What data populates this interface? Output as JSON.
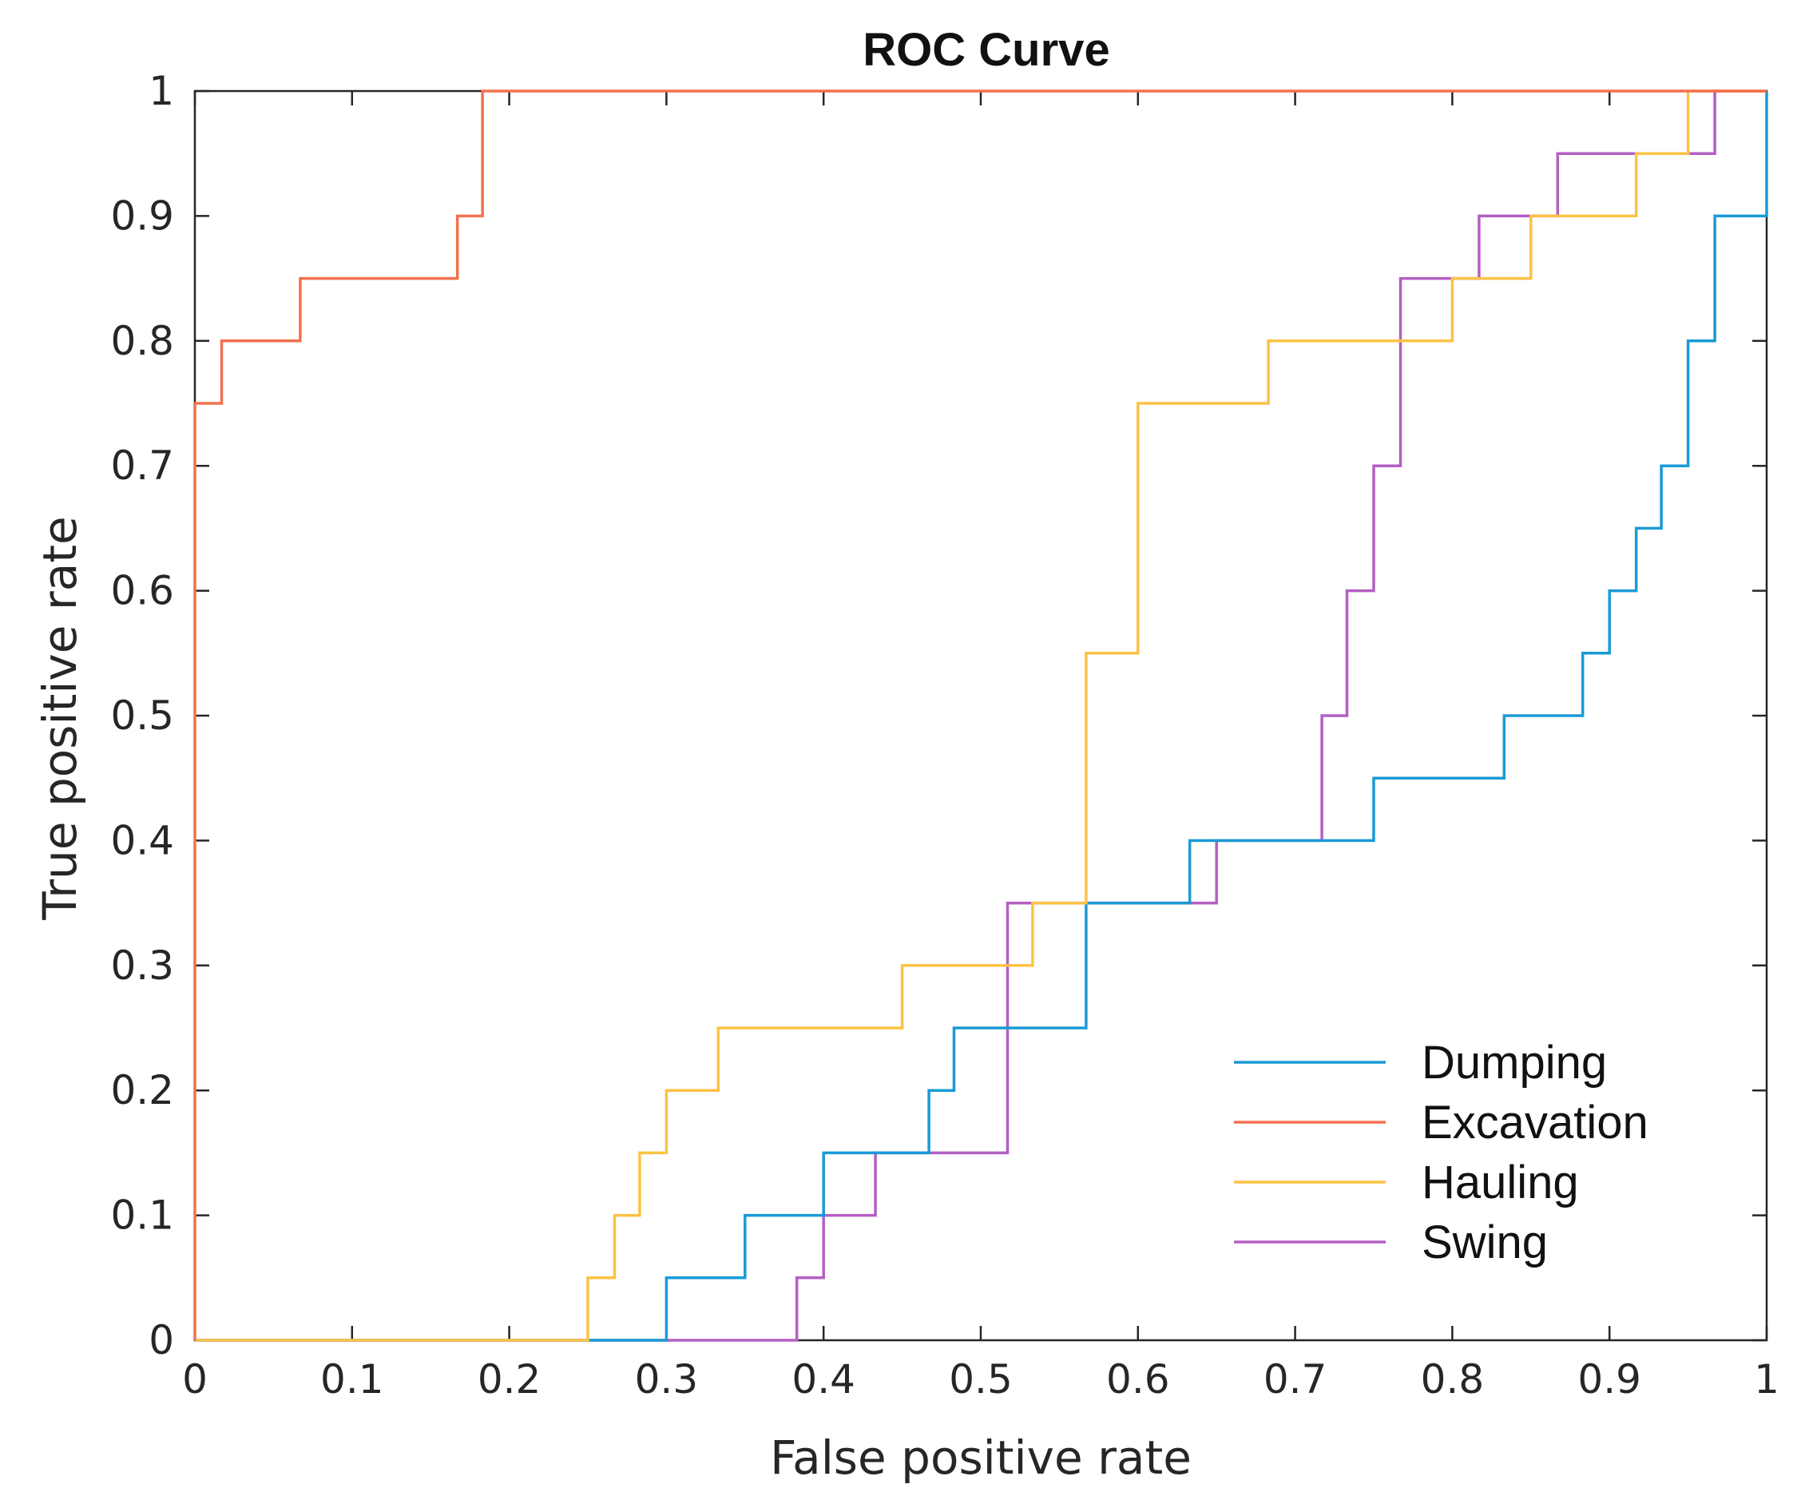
{
  "chart_data": {
    "type": "line",
    "title": "ROC Curve",
    "xlabel": "False positive rate",
    "ylabel": "True positive rate",
    "xlim": [
      0,
      1
    ],
    "ylim": [
      0,
      1
    ],
    "xticks": [
      "0",
      "0.1",
      "0.2",
      "0.3",
      "0.4",
      "0.5",
      "0.6",
      "0.7",
      "0.8",
      "0.9",
      "1"
    ],
    "yticks": [
      "0",
      "0.1",
      "0.2",
      "0.3",
      "0.4",
      "0.5",
      "0.6",
      "0.7",
      "0.8",
      "0.9",
      "1"
    ],
    "grid": false,
    "legend_position": "bottom-right",
    "series": [
      {
        "name": "Dumping",
        "color": "#1a9ad6",
        "points": [
          [
            0,
            0
          ],
          [
            0.3,
            0
          ],
          [
            0.3,
            0.05
          ],
          [
            0.35,
            0.05
          ],
          [
            0.35,
            0.1
          ],
          [
            0.4,
            0.1
          ],
          [
            0.4,
            0.15
          ],
          [
            0.467,
            0.15
          ],
          [
            0.467,
            0.2
          ],
          [
            0.483,
            0.2
          ],
          [
            0.483,
            0.25
          ],
          [
            0.567,
            0.25
          ],
          [
            0.567,
            0.35
          ],
          [
            0.633,
            0.35
          ],
          [
            0.633,
            0.4
          ],
          [
            0.75,
            0.4
          ],
          [
            0.75,
            0.45
          ],
          [
            0.833,
            0.45
          ],
          [
            0.833,
            0.5
          ],
          [
            0.883,
            0.5
          ],
          [
            0.883,
            0.55
          ],
          [
            0.9,
            0.55
          ],
          [
            0.9,
            0.6
          ],
          [
            0.917,
            0.6
          ],
          [
            0.917,
            0.65
          ],
          [
            0.933,
            0.65
          ],
          [
            0.933,
            0.7
          ],
          [
            0.95,
            0.7
          ],
          [
            0.95,
            0.8
          ],
          [
            0.967,
            0.8
          ],
          [
            0.967,
            0.9
          ],
          [
            1,
            0.9
          ],
          [
            1,
            1
          ]
        ]
      },
      {
        "name": "Excavation",
        "color": "#f2714e",
        "points": [
          [
            0,
            0
          ],
          [
            0,
            0.75
          ],
          [
            0.017,
            0.75
          ],
          [
            0.017,
            0.8
          ],
          [
            0.067,
            0.8
          ],
          [
            0.067,
            0.85
          ],
          [
            0.167,
            0.85
          ],
          [
            0.167,
            0.9
          ],
          [
            0.183,
            0.9
          ],
          [
            0.183,
            1
          ],
          [
            1,
            1
          ]
        ]
      },
      {
        "name": "Hauling",
        "color": "#fcc244",
        "points": [
          [
            0,
            0
          ],
          [
            0.25,
            0
          ],
          [
            0.25,
            0.05
          ],
          [
            0.267,
            0.05
          ],
          [
            0.267,
            0.1
          ],
          [
            0.283,
            0.1
          ],
          [
            0.283,
            0.15
          ],
          [
            0.3,
            0.15
          ],
          [
            0.3,
            0.2
          ],
          [
            0.333,
            0.2
          ],
          [
            0.333,
            0.25
          ],
          [
            0.45,
            0.25
          ],
          [
            0.45,
            0.3
          ],
          [
            0.533,
            0.3
          ],
          [
            0.533,
            0.35
          ],
          [
            0.567,
            0.35
          ],
          [
            0.567,
            0.55
          ],
          [
            0.6,
            0.55
          ],
          [
            0.6,
            0.75
          ],
          [
            0.683,
            0.75
          ],
          [
            0.683,
            0.8
          ],
          [
            0.8,
            0.8
          ],
          [
            0.8,
            0.85
          ],
          [
            0.85,
            0.85
          ],
          [
            0.85,
            0.9
          ],
          [
            0.917,
            0.9
          ],
          [
            0.917,
            0.95
          ],
          [
            0.95,
            0.95
          ],
          [
            0.95,
            1
          ],
          [
            1,
            1
          ]
        ]
      },
      {
        "name": "Swing",
        "color": "#b45fc3",
        "points": [
          [
            0,
            0
          ],
          [
            0.383,
            0
          ],
          [
            0.383,
            0.05
          ],
          [
            0.4,
            0.05
          ],
          [
            0.4,
            0.1
          ],
          [
            0.433,
            0.1
          ],
          [
            0.433,
            0.15
          ],
          [
            0.517,
            0.15
          ],
          [
            0.517,
            0.35
          ],
          [
            0.65,
            0.35
          ],
          [
            0.65,
            0.4
          ],
          [
            0.717,
            0.4
          ],
          [
            0.717,
            0.5
          ],
          [
            0.733,
            0.5
          ],
          [
            0.733,
            0.6
          ],
          [
            0.75,
            0.6
          ],
          [
            0.75,
            0.7
          ],
          [
            0.767,
            0.7
          ],
          [
            0.767,
            0.85
          ],
          [
            0.817,
            0.85
          ],
          [
            0.817,
            0.9
          ],
          [
            0.867,
            0.9
          ],
          [
            0.867,
            0.95
          ],
          [
            0.967,
            0.95
          ],
          [
            0.967,
            1
          ],
          [
            1,
            1
          ]
        ]
      }
    ]
  }
}
